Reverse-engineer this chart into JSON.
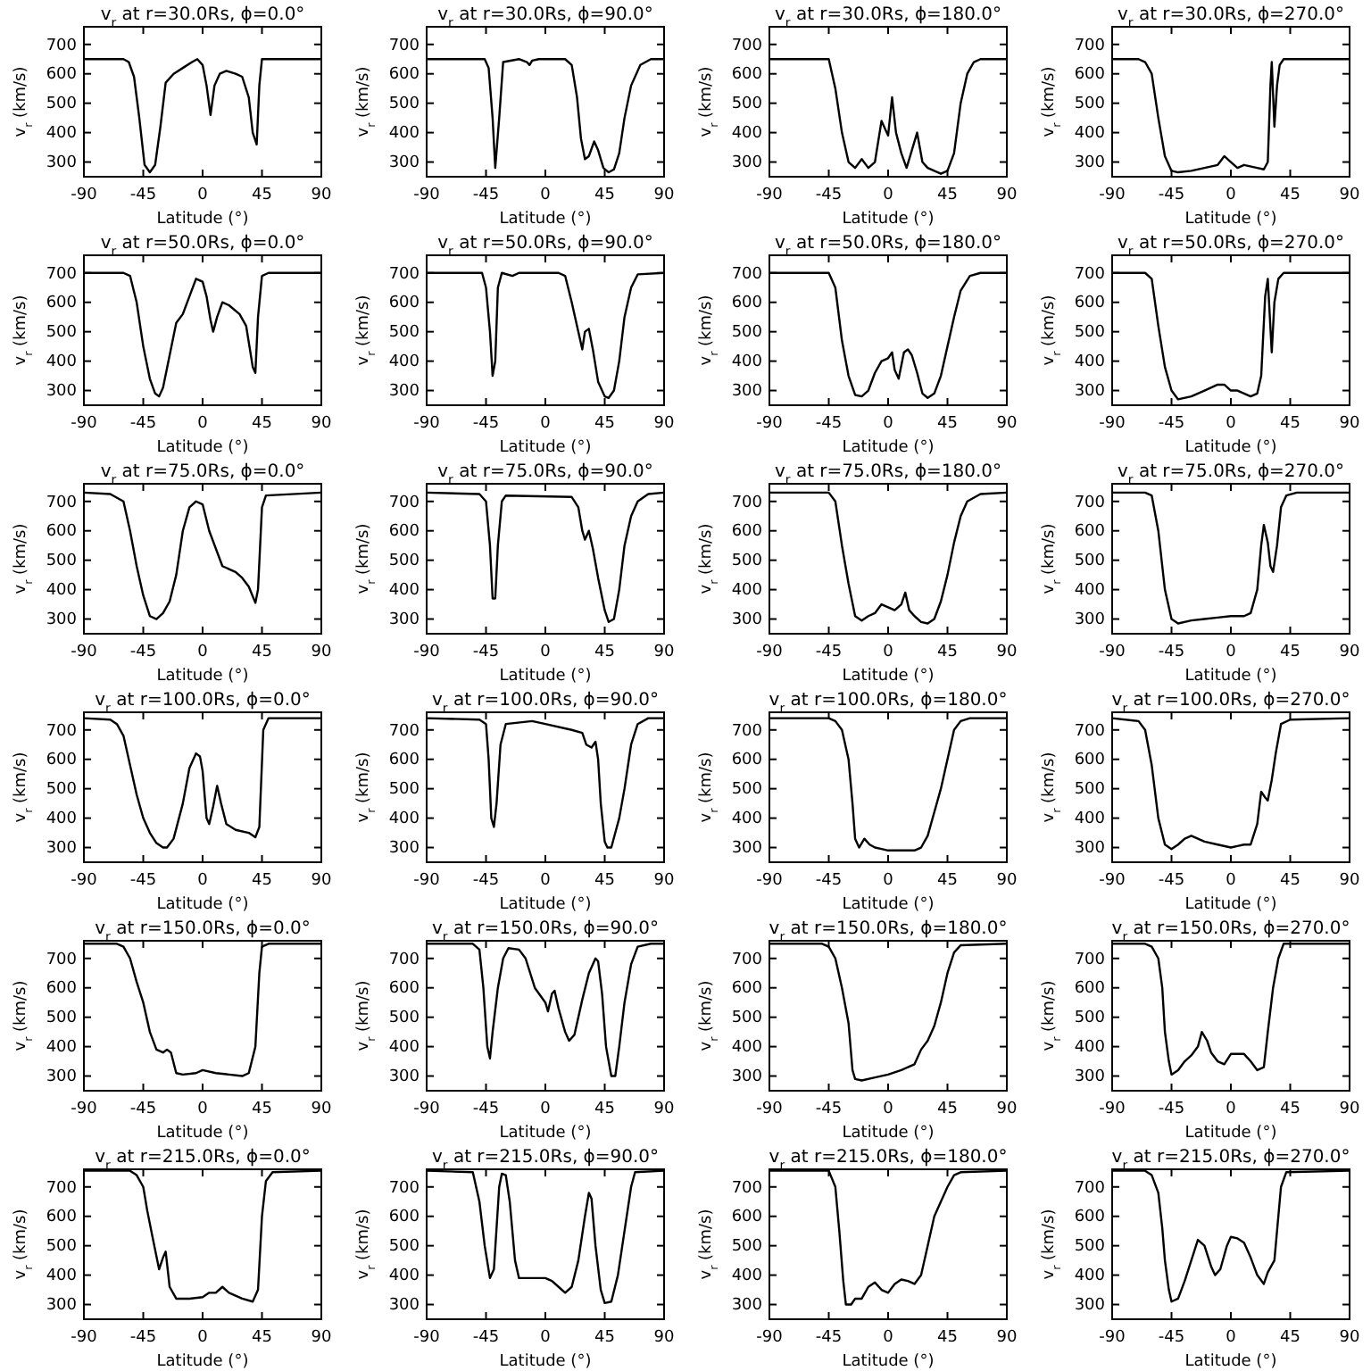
{
  "chart_data": [
    {
      "type": "line",
      "title": "v$_{r}$ at r=30.0Rs, ϕ=0.0°",
      "xlabel": "Latitude (°)",
      "ylabel": "v$_{r}$ (km/s)",
      "color": "#000000",
      "xlim": [
        -90,
        90
      ],
      "ylim": [
        250,
        760
      ],
      "xticks": [
        -90,
        -45,
        0,
        45,
        90
      ],
      "yticks": [
        300,
        400,
        500,
        600,
        700
      ],
      "x": [
        -90,
        -60,
        -56,
        -52,
        -48,
        -44,
        -40,
        -36,
        -32,
        -28,
        -22,
        -15,
        -8,
        -4,
        0,
        3,
        6,
        9,
        13,
        18,
        25,
        30,
        35,
        38,
        41,
        43,
        45,
        90
      ],
      "values": [
        650,
        650,
        640,
        590,
        450,
        290,
        265,
        290,
        420,
        570,
        600,
        620,
        640,
        650,
        630,
        560,
        460,
        560,
        600,
        610,
        600,
        590,
        520,
        400,
        360,
        560,
        650,
        650
      ]
    },
    {
      "type": "line",
      "title": "v$_{r}$ at r=30.0Rs, ϕ=90.0°",
      "xlabel": "Latitude (°)",
      "ylabel": "v$_{r}$ (km/s)",
      "color": "#000000",
      "xlim": [
        -90,
        90
      ],
      "ylim": [
        250,
        760
      ],
      "xticks": [
        -90,
        -45,
        0,
        45,
        90
      ],
      "yticks": [
        300,
        400,
        500,
        600,
        700
      ],
      "x": [
        -90,
        -46,
        -43,
        -40,
        -38,
        -35,
        -32,
        -20,
        -14,
        -12,
        -10,
        -5,
        15,
        20,
        24,
        27,
        30,
        33,
        37,
        40,
        44,
        48,
        52,
        56,
        60,
        65,
        72,
        80,
        90
      ],
      "values": [
        650,
        650,
        620,
        450,
        280,
        450,
        640,
        650,
        640,
        630,
        645,
        650,
        650,
        630,
        520,
        380,
        310,
        320,
        370,
        340,
        280,
        265,
        275,
        330,
        450,
        560,
        630,
        650,
        650
      ]
    },
    {
      "type": "line",
      "title": "v$_{r}$ at r=30.0Rs, ϕ=180.0°",
      "xlabel": "Latitude (°)",
      "ylabel": "v$_{r}$ (km/s)",
      "color": "#000000",
      "xlim": [
        -90,
        90
      ],
      "ylim": [
        250,
        760
      ],
      "xticks": [
        -90,
        -45,
        0,
        45,
        90
      ],
      "yticks": [
        300,
        400,
        500,
        600,
        700
      ],
      "x": [
        -90,
        -45,
        -40,
        -35,
        -30,
        -25,
        -20,
        -15,
        -10,
        -5,
        0,
        3,
        6,
        10,
        14,
        18,
        22,
        26,
        30,
        40,
        45,
        50,
        55,
        60,
        65,
        70,
        90
      ],
      "values": [
        650,
        650,
        550,
        400,
        300,
        280,
        310,
        280,
        300,
        440,
        390,
        520,
        400,
        330,
        280,
        340,
        400,
        300,
        280,
        260,
        270,
        330,
        500,
        600,
        640,
        650,
        650
      ]
    },
    {
      "type": "line",
      "title": "v$_{r}$ at r=30.0Rs, ϕ=270.0°",
      "xlabel": "Latitude (°)",
      "ylabel": "v$_{r}$ (km/s)",
      "color": "#000000",
      "xlim": [
        -90,
        90
      ],
      "ylim": [
        250,
        760
      ],
      "xticks": [
        -90,
        -45,
        0,
        45,
        90
      ],
      "yticks": [
        300,
        400,
        500,
        600,
        700
      ],
      "x": [
        -90,
        -70,
        -65,
        -60,
        -55,
        -50,
        -45,
        -40,
        -30,
        -20,
        -10,
        -5,
        0,
        5,
        10,
        20,
        25,
        28,
        30,
        31,
        33,
        35,
        37,
        40,
        90
      ],
      "values": [
        650,
        650,
        640,
        600,
        450,
        320,
        270,
        265,
        270,
        280,
        290,
        320,
        300,
        280,
        290,
        280,
        275,
        300,
        560,
        640,
        420,
        560,
        630,
        650,
        650
      ]
    },
    {
      "type": "line",
      "title": "v$_{r}$ at r=50.0Rs, ϕ=0.0°",
      "xlabel": "Latitude (°)",
      "ylabel": "v$_{r}$ (km/s)",
      "color": "#000000",
      "xlim": [
        -90,
        90
      ],
      "ylim": [
        250,
        760
      ],
      "xticks": [
        -90,
        -45,
        0,
        45,
        90
      ],
      "yticks": [
        300,
        400,
        500,
        600,
        700
      ],
      "x": [
        -90,
        -60,
        -55,
        -50,
        -45,
        -40,
        -36,
        -33,
        -30,
        -25,
        -20,
        -15,
        -10,
        -5,
        0,
        3,
        6,
        8,
        11,
        15,
        20,
        28,
        33,
        38,
        40,
        42,
        45,
        50,
        90
      ],
      "values": [
        700,
        700,
        690,
        600,
        450,
        340,
        290,
        280,
        310,
        420,
        530,
        560,
        620,
        680,
        670,
        620,
        540,
        500,
        550,
        600,
        590,
        560,
        520,
        380,
        360,
        550,
        690,
        700,
        700
      ]
    },
    {
      "type": "line",
      "title": "v$_{r}$ at r=50.0Rs, ϕ=90.0°",
      "xlabel": "Latitude (°)",
      "ylabel": "v$_{r}$ (km/s)",
      "color": "#000000",
      "xlim": [
        -90,
        90
      ],
      "ylim": [
        250,
        760
      ],
      "xticks": [
        -90,
        -45,
        0,
        45,
        90
      ],
      "yticks": [
        300,
        400,
        500,
        600,
        700
      ],
      "x": [
        -90,
        -48,
        -45,
        -42,
        -40,
        -38,
        -36,
        -33,
        -25,
        -20,
        10,
        15,
        20,
        25,
        28,
        30,
        33,
        36,
        40,
        45,
        48,
        52,
        56,
        60,
        65,
        70,
        90
      ],
      "values": [
        700,
        700,
        650,
        500,
        350,
        400,
        650,
        700,
        690,
        700,
        700,
        690,
        600,
        500,
        440,
        500,
        510,
        440,
        330,
        280,
        275,
        300,
        400,
        550,
        650,
        695,
        700
      ]
    },
    {
      "type": "line",
      "title": "v$_{r}$ at r=50.0Rs, ϕ=180.0°",
      "xlabel": "Latitude (°)",
      "ylabel": "v$_{r}$ (km/s)",
      "color": "#000000",
      "xlim": [
        -90,
        90
      ],
      "ylim": [
        250,
        760
      ],
      "xticks": [
        -90,
        -45,
        0,
        45,
        90
      ],
      "yticks": [
        300,
        400,
        500,
        600,
        700
      ],
      "x": [
        -90,
        -45,
        -40,
        -35,
        -30,
        -25,
        -20,
        -15,
        -10,
        -5,
        0,
        3,
        5,
        8,
        12,
        15,
        18,
        22,
        26,
        30,
        35,
        40,
        45,
        50,
        55,
        62,
        70,
        90
      ],
      "values": [
        700,
        700,
        650,
        470,
        350,
        285,
        280,
        300,
        360,
        400,
        410,
        430,
        370,
        340,
        430,
        440,
        420,
        360,
        290,
        275,
        290,
        350,
        450,
        550,
        640,
        690,
        700,
        700
      ]
    },
    {
      "type": "line",
      "title": "v$_{r}$ at r=50.0Rs, ϕ=270.0°",
      "xlabel": "Latitude (°)",
      "ylabel": "v$_{r}$ (km/s)",
      "color": "#000000",
      "xlim": [
        -90,
        90
      ],
      "ylim": [
        250,
        760
      ],
      "xticks": [
        -90,
        -45,
        0,
        45,
        90
      ],
      "yticks": [
        300,
        400,
        500,
        600,
        700
      ],
      "x": [
        -90,
        -65,
        -60,
        -55,
        -50,
        -45,
        -40,
        -30,
        -20,
        -10,
        -5,
        0,
        5,
        10,
        15,
        20,
        23,
        26,
        28,
        31,
        33,
        36,
        40,
        90
      ],
      "values": [
        700,
        700,
        680,
        520,
        380,
        300,
        270,
        280,
        300,
        320,
        320,
        300,
        300,
        290,
        280,
        290,
        350,
        620,
        680,
        430,
        600,
        680,
        700,
        700
      ]
    },
    {
      "type": "line",
      "title": "v$_{r}$ at r=75.0Rs, ϕ=0.0°",
      "xlabel": "Latitude (°)",
      "ylabel": "v$_{r}$ (km/s)",
      "color": "#000000",
      "xlim": [
        -90,
        90
      ],
      "ylim": [
        250,
        760
      ],
      "xticks": [
        -90,
        -45,
        0,
        45,
        90
      ],
      "yticks": [
        300,
        400,
        500,
        600,
        700
      ],
      "x": [
        -90,
        -70,
        -60,
        -55,
        -50,
        -45,
        -40,
        -35,
        -30,
        -25,
        -20,
        -15,
        -10,
        -5,
        0,
        5,
        10,
        15,
        20,
        25,
        30,
        35,
        40,
        42,
        45,
        48,
        90
      ],
      "values": [
        730,
        725,
        700,
        600,
        480,
        380,
        310,
        300,
        320,
        360,
        450,
        600,
        680,
        700,
        690,
        600,
        540,
        480,
        470,
        460,
        440,
        410,
        355,
        400,
        680,
        720,
        730
      ]
    },
    {
      "type": "line",
      "title": "v$_{r}$ at r=75.0Rs, ϕ=90.0°",
      "xlabel": "Latitude (°)",
      "ylabel": "v$_{r}$ (km/s)",
      "color": "#000000",
      "xlim": [
        -90,
        90
      ],
      "ylim": [
        250,
        760
      ],
      "xticks": [
        -90,
        -45,
        0,
        45,
        90
      ],
      "yticks": [
        300,
        400,
        500,
        600,
        700
      ],
      "x": [
        -90,
        -50,
        -45,
        -42,
        -40,
        -38,
        -36,
        -33,
        -30,
        20,
        25,
        28,
        30,
        33,
        36,
        40,
        45,
        48,
        52,
        56,
        60,
        65,
        70,
        78,
        90
      ],
      "values": [
        730,
        725,
        700,
        550,
        370,
        370,
        550,
        700,
        720,
        715,
        680,
        600,
        570,
        600,
        540,
        440,
        330,
        290,
        300,
        400,
        550,
        650,
        700,
        725,
        730
      ]
    },
    {
      "type": "line",
      "title": "v$_{r}$ at r=75.0Rs, ϕ=180.0°",
      "xlabel": "Latitude (°)",
      "ylabel": "v$_{r}$ (km/s)",
      "color": "#000000",
      "xlim": [
        -90,
        90
      ],
      "ylim": [
        250,
        760
      ],
      "xticks": [
        -90,
        -45,
        0,
        45,
        90
      ],
      "yticks": [
        300,
        400,
        500,
        600,
        700
      ],
      "x": [
        -90,
        -45,
        -40,
        -35,
        -30,
        -25,
        -20,
        -15,
        -10,
        -5,
        0,
        5,
        10,
        13,
        16,
        20,
        25,
        30,
        35,
        40,
        45,
        50,
        55,
        60,
        70,
        90
      ],
      "values": [
        730,
        730,
        700,
        550,
        420,
        310,
        295,
        310,
        320,
        350,
        340,
        330,
        350,
        390,
        330,
        310,
        290,
        285,
        300,
        360,
        450,
        560,
        650,
        700,
        725,
        730
      ]
    },
    {
      "type": "line",
      "title": "v$_{r}$ at r=75.0Rs, ϕ=270.0°",
      "xlabel": "Latitude (°)",
      "ylabel": "v$_{r}$ (km/s)",
      "color": "#000000",
      "xlim": [
        -90,
        90
      ],
      "ylim": [
        250,
        760
      ],
      "xticks": [
        -90,
        -45,
        0,
        45,
        90
      ],
      "yticks": [
        300,
        400,
        500,
        600,
        700
      ],
      "x": [
        -90,
        -65,
        -60,
        -55,
        -50,
        -45,
        -40,
        -30,
        -20,
        -10,
        0,
        10,
        15,
        20,
        23,
        25,
        28,
        30,
        32,
        35,
        38,
        42,
        50,
        90
      ],
      "values": [
        730,
        730,
        720,
        600,
        400,
        300,
        285,
        295,
        300,
        305,
        310,
        310,
        320,
        400,
        550,
        620,
        560,
        480,
        460,
        550,
        680,
        720,
        730,
        730
      ]
    },
    {
      "type": "line",
      "title": "v$_{r}$ at r=100.0Rs, ϕ=0.0°",
      "xlabel": "Latitude (°)",
      "ylabel": "v$_{r}$ (km/s)",
      "color": "#000000",
      "xlim": [
        -90,
        90
      ],
      "ylim": [
        250,
        760
      ],
      "xticks": [
        -90,
        -45,
        0,
        45,
        90
      ],
      "yticks": [
        300,
        400,
        500,
        600,
        700
      ],
      "x": [
        -90,
        -70,
        -65,
        -60,
        -55,
        -50,
        -45,
        -40,
        -35,
        -30,
        -27,
        -22,
        -15,
        -10,
        -5,
        -2,
        0,
        3,
        5,
        8,
        11,
        14,
        18,
        25,
        35,
        40,
        43,
        46,
        50,
        90
      ],
      "values": [
        740,
        735,
        720,
        680,
        580,
        480,
        400,
        350,
        315,
        300,
        300,
        330,
        450,
        570,
        620,
        610,
        560,
        400,
        380,
        440,
        510,
        450,
        380,
        360,
        350,
        335,
        370,
        700,
        740,
        740
      ]
    },
    {
      "type": "line",
      "title": "v$_{r}$ at r=100.0Rs, ϕ=90.0°",
      "xlabel": "Latitude (°)",
      "ylabel": "v$_{r}$ (km/s)",
      "color": "#000000",
      "xlim": [
        -90,
        90
      ],
      "ylim": [
        250,
        760
      ],
      "xticks": [
        -90,
        -45,
        0,
        45,
        90
      ],
      "yticks": [
        300,
        400,
        500,
        600,
        700
      ],
      "x": [
        -90,
        -50,
        -45,
        -43,
        -41,
        -39,
        -37,
        -34,
        -30,
        -10,
        0,
        20,
        28,
        31,
        35,
        38,
        40,
        42,
        45,
        47,
        50,
        53,
        56,
        60,
        65,
        70,
        78,
        90
      ],
      "values": [
        740,
        735,
        720,
        600,
        400,
        370,
        450,
        650,
        720,
        730,
        720,
        700,
        690,
        650,
        640,
        660,
        600,
        450,
        320,
        300,
        300,
        350,
        400,
        500,
        650,
        720,
        740,
        740
      ]
    },
    {
      "type": "line",
      "title": "v$_{r}$ at r=100.0Rs, ϕ=180.0°",
      "xlabel": "Latitude (°)",
      "ylabel": "v$_{r}$ (km/s)",
      "color": "#000000",
      "xlim": [
        -90,
        90
      ],
      "ylim": [
        250,
        760
      ],
      "xticks": [
        -90,
        -45,
        0,
        45,
        90
      ],
      "yticks": [
        300,
        400,
        500,
        600,
        700
      ],
      "x": [
        -90,
        -45,
        -40,
        -35,
        -30,
        -27,
        -25,
        -22,
        -18,
        -14,
        -10,
        -5,
        0,
        10,
        20,
        25,
        30,
        35,
        40,
        45,
        50,
        55,
        62,
        90
      ],
      "values": [
        740,
        740,
        730,
        700,
        600,
        450,
        330,
        300,
        330,
        310,
        300,
        295,
        290,
        290,
        290,
        300,
        340,
        420,
        500,
        600,
        700,
        730,
        740,
        740
      ]
    },
    {
      "type": "line",
      "title": "v$_{r}$ at r=100.0Rs, ϕ=270.0°",
      "xlabel": "Latitude (°)",
      "ylabel": "v$_{r}$ (km/s)",
      "color": "#000000",
      "xlim": [
        -90,
        90
      ],
      "ylim": [
        250,
        760
      ],
      "xticks": [
        -90,
        -45,
        0,
        45,
        90
      ],
      "yticks": [
        300,
        400,
        500,
        600,
        700
      ],
      "x": [
        -90,
        -70,
        -65,
        -60,
        -55,
        -50,
        -45,
        -40,
        -35,
        -30,
        -20,
        -10,
        0,
        5,
        10,
        15,
        20,
        23,
        26,
        28,
        31,
        34,
        38,
        45,
        90
      ],
      "values": [
        740,
        730,
        700,
        580,
        400,
        310,
        295,
        310,
        330,
        340,
        320,
        310,
        300,
        305,
        310,
        310,
        380,
        490,
        470,
        460,
        530,
        620,
        720,
        735,
        740
      ]
    },
    {
      "type": "line",
      "title": "v$_{r}$ at r=150.0Rs, ϕ=0.0°",
      "xlabel": "Latitude (°)",
      "ylabel": "v$_{r}$ (km/s)",
      "color": "#000000",
      "xlim": [
        -90,
        90
      ],
      "ylim": [
        250,
        760
      ],
      "xticks": [
        -90,
        -45,
        0,
        45,
        90
      ],
      "yticks": [
        300,
        400,
        500,
        600,
        700
      ],
      "x": [
        -90,
        -65,
        -60,
        -55,
        -50,
        -45,
        -40,
        -35,
        -30,
        -27,
        -24,
        -20,
        -15,
        -5,
        0,
        10,
        20,
        30,
        35,
        40,
        43,
        45,
        50,
        90
      ],
      "values": [
        750,
        750,
        740,
        700,
        620,
        550,
        450,
        390,
        380,
        390,
        380,
        310,
        305,
        310,
        320,
        310,
        305,
        300,
        310,
        400,
        650,
        740,
        750,
        750
      ]
    },
    {
      "type": "line",
      "title": "v$_{r}$ at r=150.0Rs, ϕ=90.0°",
      "xlabel": "Latitude (°)",
      "ylabel": "v$_{r}$ (km/s)",
      "color": "#000000",
      "xlim": [
        -90,
        90
      ],
      "ylim": [
        250,
        760
      ],
      "xticks": [
        -90,
        -45,
        0,
        45,
        90
      ],
      "yticks": [
        300,
        400,
        500,
        600,
        700
      ],
      "x": [
        -90,
        -55,
        -50,
        -47,
        -44,
        -42,
        -40,
        -36,
        -32,
        -28,
        -20,
        -15,
        -8,
        0,
        2,
        5,
        7,
        10,
        15,
        18,
        22,
        28,
        33,
        38,
        40,
        43,
        46,
        50,
        53,
        56,
        60,
        65,
        70,
        80,
        90
      ],
      "values": [
        750,
        750,
        730,
        600,
        400,
        360,
        450,
        600,
        700,
        735,
        730,
        700,
        600,
        550,
        520,
        580,
        590,
        530,
        450,
        420,
        440,
        560,
        650,
        700,
        690,
        580,
        400,
        300,
        300,
        400,
        550,
        680,
        740,
        750,
        750
      ]
    },
    {
      "type": "line",
      "title": "v$_{r}$ at r=150.0Rs, ϕ=180.0°",
      "xlabel": "Latitude (°)",
      "ylabel": "v$_{r}$ (km/s)",
      "color": "#000000",
      "xlim": [
        -90,
        90
      ],
      "ylim": [
        250,
        760
      ],
      "xticks": [
        -90,
        -45,
        0,
        45,
        90
      ],
      "yticks": [
        300,
        400,
        500,
        600,
        700
      ],
      "x": [
        -90,
        -50,
        -45,
        -40,
        -35,
        -30,
        -27,
        -25,
        -20,
        -10,
        0,
        10,
        20,
        25,
        30,
        35,
        40,
        45,
        50,
        55,
        90
      ],
      "values": [
        750,
        750,
        740,
        700,
        600,
        480,
        320,
        290,
        285,
        295,
        305,
        320,
        340,
        390,
        420,
        470,
        550,
        650,
        720,
        745,
        750
      ]
    },
    {
      "type": "line",
      "title": "v$_{r}$ at r=150.0Rs, ϕ=270.0°",
      "xlabel": "Latitude (°)",
      "ylabel": "v$_{r}$ (km/s)",
      "color": "#000000",
      "xlim": [
        -90,
        90
      ],
      "ylim": [
        250,
        760
      ],
      "xticks": [
        -90,
        -45,
        0,
        45,
        90
      ],
      "yticks": [
        300,
        400,
        500,
        600,
        700
      ],
      "x": [
        -90,
        -65,
        -60,
        -55,
        -52,
        -50,
        -47,
        -45,
        -40,
        -35,
        -30,
        -25,
        -22,
        -18,
        -15,
        -10,
        -5,
        0,
        10,
        15,
        20,
        25,
        28,
        32,
        36,
        40,
        90
      ],
      "values": [
        750,
        750,
        740,
        700,
        600,
        450,
        350,
        305,
        320,
        350,
        370,
        400,
        450,
        420,
        380,
        350,
        340,
        375,
        375,
        350,
        320,
        330,
        450,
        600,
        700,
        750,
        750
      ]
    },
    {
      "type": "line",
      "title": "v$_{r}$ at r=215.0Rs, ϕ=0.0°",
      "xlabel": "Latitude (°)",
      "ylabel": "v$_{r}$ (km/s)",
      "color": "#000000",
      "xlim": [
        -90,
        90
      ],
      "ylim": [
        250,
        760
      ],
      "xticks": [
        -90,
        -45,
        0,
        45,
        90
      ],
      "yticks": [
        300,
        400,
        500,
        600,
        700
      ],
      "x": [
        -90,
        -55,
        -50,
        -45,
        -42,
        -38,
        -33,
        -30,
        -28,
        -25,
        -20,
        -10,
        0,
        5,
        10,
        15,
        20,
        30,
        38,
        42,
        45,
        48,
        53,
        90
      ],
      "values": [
        755,
        755,
        740,
        700,
        620,
        530,
        420,
        460,
        480,
        360,
        320,
        320,
        325,
        340,
        340,
        360,
        340,
        320,
        310,
        350,
        600,
        720,
        750,
        755
      ]
    },
    {
      "type": "line",
      "title": "v$_{r}$ at r=215.0Rs, ϕ=90.0°",
      "xlabel": "Latitude (°)",
      "ylabel": "v$_{r}$ (km/s)",
      "color": "#000000",
      "xlim": [
        -90,
        90
      ],
      "ylim": [
        250,
        760
      ],
      "xticks": [
        -90,
        -45,
        0,
        45,
        90
      ],
      "yticks": [
        300,
        400,
        500,
        600,
        700
      ],
      "x": [
        -90,
        -55,
        -50,
        -46,
        -42,
        -39,
        -35,
        -33,
        -30,
        -27,
        -23,
        -20,
        -10,
        0,
        5,
        10,
        15,
        20,
        25,
        30,
        33,
        35,
        38,
        42,
        45,
        50,
        55,
        60,
        65,
        68,
        90
      ],
      "values": [
        755,
        750,
        650,
        500,
        390,
        420,
        700,
        745,
        740,
        650,
        450,
        390,
        390,
        390,
        380,
        360,
        340,
        360,
        450,
        600,
        680,
        660,
        500,
        350,
        305,
        310,
        400,
        550,
        700,
        750,
        755
      ]
    },
    {
      "type": "line",
      "title": "v$_{r}$ at r=215.0Rs, ϕ=180.0°",
      "xlabel": "Latitude (°)",
      "ylabel": "v$_{r}$ (km/s)",
      "color": "#000000",
      "xlim": [
        -90,
        90
      ],
      "ylim": [
        250,
        760
      ],
      "xticks": [
        -90,
        -45,
        0,
        45,
        90
      ],
      "yticks": [
        300,
        400,
        500,
        600,
        700
      ],
      "x": [
        -90,
        -45,
        -40,
        -37,
        -34,
        -32,
        -28,
        -25,
        -20,
        -15,
        -10,
        -5,
        0,
        5,
        10,
        15,
        20,
        25,
        30,
        35,
        40,
        45,
        50,
        55,
        90
      ],
      "values": [
        755,
        755,
        700,
        550,
        380,
        300,
        300,
        320,
        320,
        360,
        375,
        350,
        340,
        370,
        385,
        380,
        370,
        400,
        500,
        600,
        650,
        700,
        740,
        750,
        755
      ]
    },
    {
      "type": "line",
      "title": "v$_{r}$ at r=215.0Rs, ϕ=270.0°",
      "xlabel": "Latitude (°)",
      "ylabel": "v$_{r}$ (km/s)",
      "color": "#000000",
      "xlim": [
        -90,
        90
      ],
      "ylim": [
        250,
        760
      ],
      "xticks": [
        -90,
        -45,
        0,
        45,
        90
      ],
      "yticks": [
        300,
        400,
        500,
        600,
        700
      ],
      "x": [
        -90,
        -65,
        -60,
        -55,
        -52,
        -50,
        -47,
        -45,
        -40,
        -35,
        -30,
        -25,
        -20,
        -15,
        -12,
        -8,
        -3,
        0,
        5,
        10,
        15,
        20,
        25,
        28,
        33,
        38,
        42,
        90
      ],
      "values": [
        755,
        755,
        740,
        680,
        560,
        450,
        350,
        310,
        320,
        380,
        450,
        520,
        500,
        430,
        400,
        420,
        500,
        530,
        525,
        510,
        460,
        400,
        370,
        410,
        450,
        700,
        750,
        755
      ]
    }
  ]
}
